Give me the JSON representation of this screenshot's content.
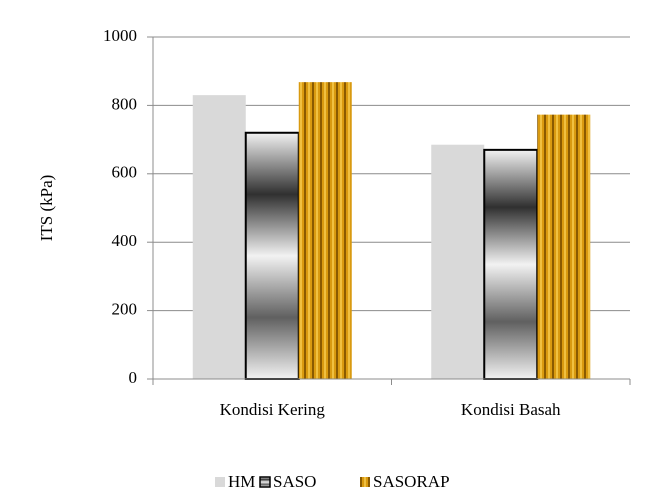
{
  "chart_data": {
    "type": "bar",
    "y_label": "ITS (kPa)",
    "categories": [
      "Kondisi Kering",
      "Kondisi Basah"
    ],
    "series": [
      {
        "name": "HM",
        "color": "#d9d9d9",
        "values": [
          830,
          685
        ]
      },
      {
        "name": "SASO",
        "color": "#a6a6a6",
        "values": [
          720,
          670
        ]
      },
      {
        "name": "SASORAP",
        "color": "#c8900a",
        "values": [
          868,
          773
        ]
      }
    ],
    "ylim": [
      0,
      1000
    ],
    "yticks": [
      0,
      200,
      400,
      600,
      800,
      1000
    ],
    "grid": true,
    "legend": "bottom"
  }
}
